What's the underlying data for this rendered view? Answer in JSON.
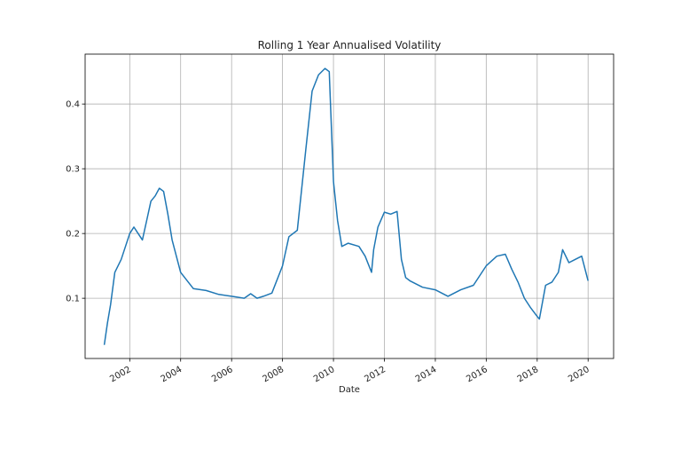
{
  "chart_data": {
    "type": "line",
    "title": "Rolling 1 Year Annualised Volatility",
    "xlabel": "Date",
    "ylabel": "",
    "grid": true,
    "legend": "none",
    "xlim": [
      "2000-04-01",
      "2021-01-01"
    ],
    "ylim": [
      0.007,
      0.477
    ],
    "x_ticks": [
      "2002",
      "2004",
      "2006",
      "2008",
      "2010",
      "2012",
      "2014",
      "2016",
      "2018",
      "2020"
    ],
    "y_ticks": [
      "0.1",
      "0.2",
      "0.3",
      "0.4"
    ],
    "series": [
      {
        "color": "#1f77b4",
        "x": [
          "2001-01-01",
          "2001-02-15",
          "2001-04-01",
          "2001-06-01",
          "2001-09-01",
          "2002-01-01",
          "2002-03-01",
          "2002-05-01",
          "2002-07-01",
          "2002-09-01",
          "2002-11-01",
          "2003-01-01",
          "2003-03-01",
          "2003-05-01",
          "2003-07-01",
          "2003-09-01",
          "2004-01-01",
          "2004-07-01",
          "2005-01-01",
          "2005-07-01",
          "2006-01-01",
          "2006-07-01",
          "2006-10-01",
          "2007-01-01",
          "2007-04-01",
          "2007-08-01",
          "2008-01-01",
          "2008-04-01",
          "2008-08-01",
          "2008-12-01",
          "2009-03-01",
          "2009-06-01",
          "2009-09-01",
          "2009-11-01",
          "2010-01-01",
          "2010-03-01",
          "2010-05-01",
          "2010-08-01",
          "2011-01-01",
          "2011-04-01",
          "2011-07-01",
          "2011-08-01",
          "2011-10-01",
          "2012-01-01",
          "2012-04-01",
          "2012-07-01",
          "2012-09-01",
          "2012-11-01",
          "2013-01-01",
          "2013-07-01",
          "2014-01-01",
          "2014-07-01",
          "2015-01-01",
          "2015-07-01",
          "2016-01-01",
          "2016-06-01",
          "2016-10-01",
          "2017-01-01",
          "2017-04-01",
          "2017-07-01",
          "2017-10-01",
          "2018-01-01",
          "2018-02-01",
          "2018-05-01",
          "2018-08-01",
          "2018-11-01",
          "2019-01-01",
          "2019-04-01",
          "2019-07-01",
          "2019-10-01",
          "2020-01-01"
        ],
        "y": [
          0.028,
          0.062,
          0.09,
          0.14,
          0.16,
          0.2,
          0.21,
          0.2,
          0.19,
          0.22,
          0.25,
          0.258,
          0.27,
          0.265,
          0.23,
          0.19,
          0.14,
          0.115,
          0.112,
          0.106,
          0.103,
          0.1,
          0.107,
          0.1,
          0.103,
          0.108,
          0.15,
          0.195,
          0.205,
          0.33,
          0.42,
          0.445,
          0.455,
          0.45,
          0.28,
          0.22,
          0.18,
          0.185,
          0.18,
          0.165,
          0.14,
          0.175,
          0.21,
          0.233,
          0.23,
          0.234,
          0.16,
          0.132,
          0.127,
          0.117,
          0.113,
          0.103,
          0.113,
          0.12,
          0.15,
          0.165,
          0.168,
          0.145,
          0.125,
          0.1,
          0.085,
          0.072,
          0.068,
          0.12,
          0.125,
          0.14,
          0.175,
          0.155,
          0.16,
          0.165,
          0.127
        ]
      }
    ]
  }
}
